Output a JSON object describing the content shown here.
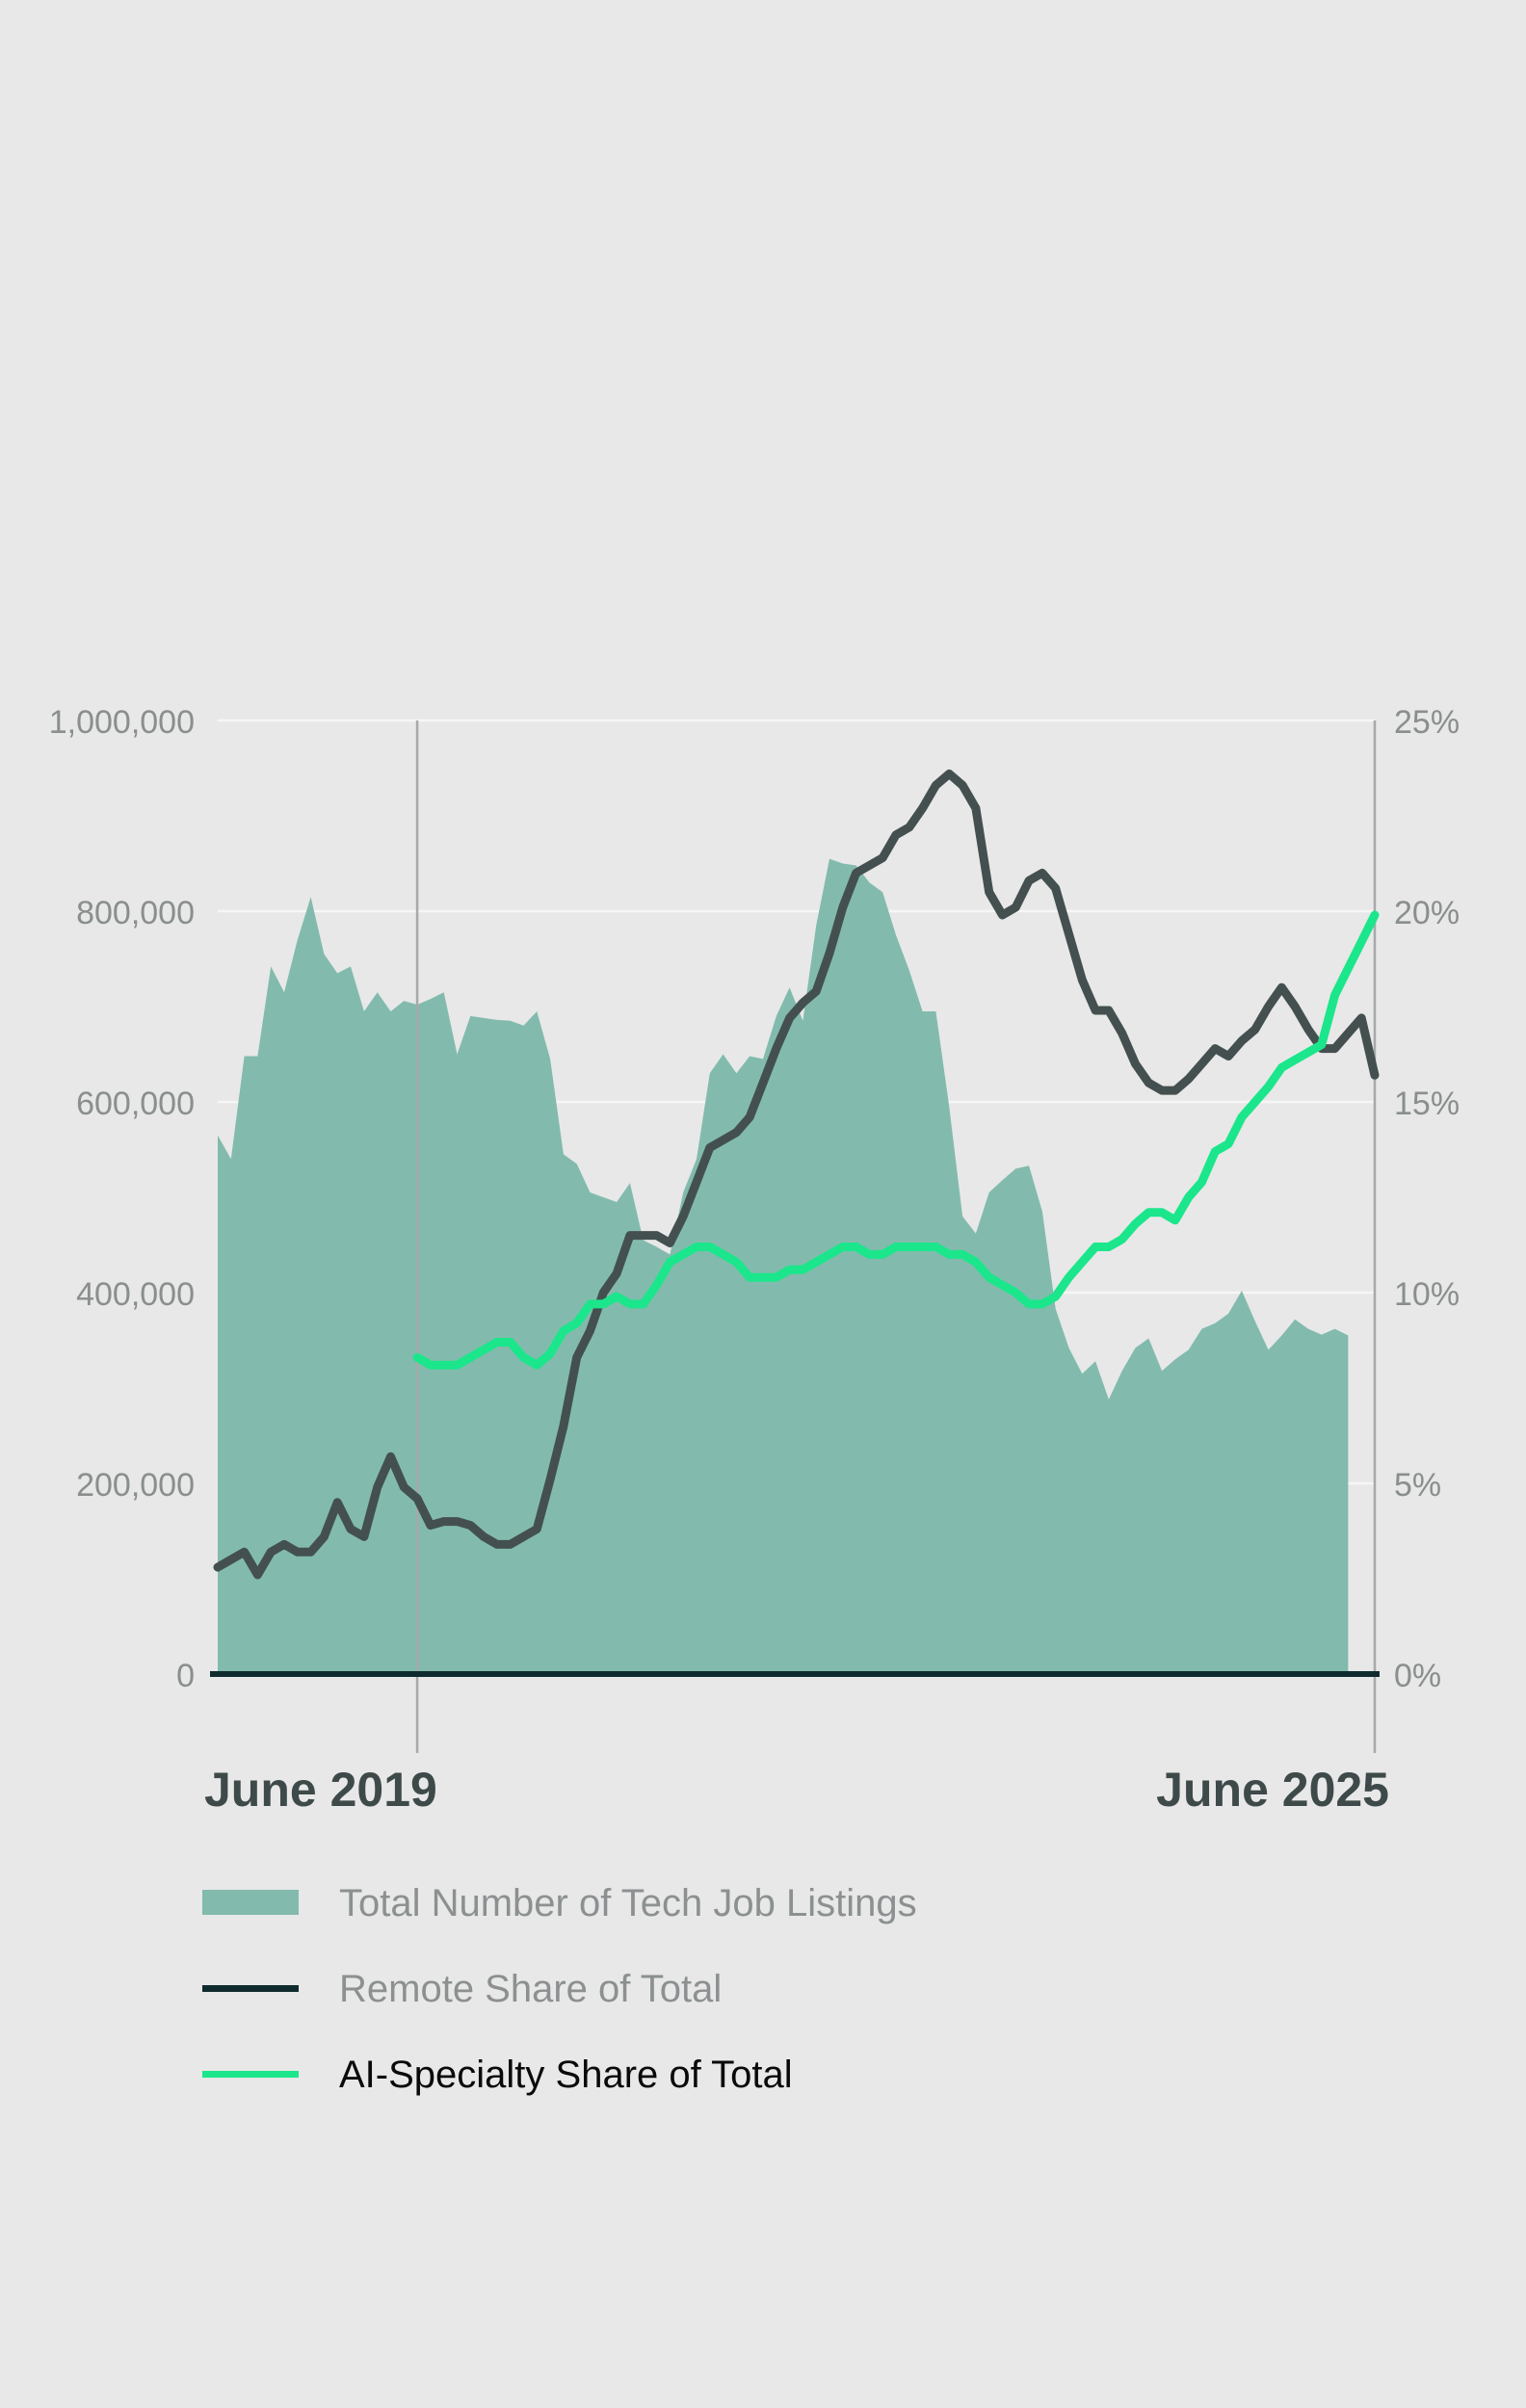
{
  "colors": {
    "background": "#e8e8e8",
    "area": "#82bbad",
    "remote_line": "#44504f",
    "ai_line": "#1be68b",
    "axis_text": "#8a8e8e",
    "date_label": "#3e4a49",
    "baseline": "#0f2b2d",
    "grid": "#f6f6f6",
    "marker": "#a6a9a9",
    "legend_dim": "#8c9090",
    "legend_strong": "#0a0a0a"
  },
  "chart_data": {
    "type": "area",
    "x_start_label": "June 2019",
    "x_end_label": "June 2025",
    "left_axis": {
      "ylim": [
        0,
        1000000
      ],
      "ticks": [
        0,
        200000,
        400000,
        600000,
        800000,
        1000000
      ],
      "tick_labels": [
        "0",
        "200,000",
        "400,000",
        "600,000",
        "800,000",
        "1,000,000"
      ]
    },
    "right_axis": {
      "ylim": [
        0,
        25
      ],
      "ticks": [
        0,
        5,
        10,
        15,
        20,
        25
      ],
      "tick_labels": [
        "0%",
        "5%",
        "10%",
        "15%",
        "20%",
        "25%"
      ]
    },
    "series": [
      {
        "name": "Total Number of Tech Job Listings",
        "kind": "area",
        "axis": "left",
        "values": [
          [
            0,
            565000
          ],
          [
            1,
            540000
          ],
          [
            2,
            648000
          ],
          [
            3,
            648000
          ],
          [
            4,
            742000
          ],
          [
            5,
            715000
          ],
          [
            6,
            770000
          ],
          [
            7,
            815000
          ],
          [
            8,
            755000
          ],
          [
            9,
            735000
          ],
          [
            10,
            742000
          ],
          [
            11,
            695000
          ],
          [
            12,
            715000
          ],
          [
            13,
            695000
          ],
          [
            14,
            706000
          ],
          [
            15,
            702000
          ],
          [
            16,
            708000
          ],
          [
            17,
            715000
          ],
          [
            18,
            650000
          ],
          [
            19,
            690000
          ],
          [
            20,
            688000
          ],
          [
            21,
            686000
          ],
          [
            22,
            685000
          ],
          [
            23,
            680000
          ],
          [
            24,
            695000
          ],
          [
            25,
            645000
          ],
          [
            26,
            545000
          ],
          [
            27,
            535000
          ],
          [
            28,
            505000
          ],
          [
            29,
            500000
          ],
          [
            30,
            495000
          ],
          [
            31,
            515000
          ],
          [
            32,
            455000
          ],
          [
            33,
            448000
          ],
          [
            34,
            440000
          ],
          [
            35,
            505000
          ],
          [
            36,
            540000
          ],
          [
            37,
            630000
          ],
          [
            38,
            650000
          ],
          [
            39,
            630000
          ],
          [
            40,
            648000
          ],
          [
            41,
            645000
          ],
          [
            42,
            690000
          ],
          [
            43,
            720000
          ],
          [
            44,
            685000
          ],
          [
            45,
            785000
          ],
          [
            46,
            855000
          ],
          [
            47,
            850000
          ],
          [
            48,
            848000
          ],
          [
            49,
            830000
          ],
          [
            50,
            820000
          ],
          [
            51,
            775000
          ],
          [
            52,
            738000
          ],
          [
            53,
            695000
          ],
          [
            54,
            695000
          ],
          [
            55,
            595000
          ],
          [
            56,
            480000
          ],
          [
            57,
            462000
          ],
          [
            58,
            505000
          ],
          [
            59,
            518000
          ],
          [
            60,
            530000
          ],
          [
            61,
            533000
          ],
          [
            62,
            485000
          ],
          [
            63,
            383000
          ],
          [
            64,
            342000
          ],
          [
            65,
            315000
          ],
          [
            66,
            328000
          ],
          [
            67,
            288000
          ],
          [
            68,
            318000
          ],
          [
            69,
            342000
          ],
          [
            70,
            352000
          ],
          [
            71,
            318000
          ],
          [
            72,
            330000
          ],
          [
            73,
            340000
          ],
          [
            74,
            362000
          ],
          [
            75,
            368000
          ],
          [
            76,
            378000
          ],
          [
            77,
            402000
          ],
          [
            78,
            370000
          ],
          [
            79,
            340000
          ],
          [
            80,
            355000
          ],
          [
            81,
            372000
          ],
          [
            82,
            362000
          ],
          [
            83,
            356000
          ],
          [
            84,
            362000
          ],
          [
            85,
            355000
          ]
        ]
      },
      {
        "name": "Remote Share of Total",
        "kind": "line",
        "axis": "right",
        "values": [
          [
            0,
            2.8
          ],
          [
            1,
            3.0
          ],
          [
            2,
            3.2
          ],
          [
            3,
            2.6
          ],
          [
            4,
            3.2
          ],
          [
            5,
            3.4
          ],
          [
            6,
            3.2
          ],
          [
            7,
            3.2
          ],
          [
            8,
            3.6
          ],
          [
            9,
            4.5
          ],
          [
            10,
            3.8
          ],
          [
            11,
            3.6
          ],
          [
            12,
            4.9
          ],
          [
            13,
            5.7
          ],
          [
            14,
            4.9
          ],
          [
            15,
            4.6
          ],
          [
            16,
            3.9
          ],
          [
            17,
            4.0
          ],
          [
            18,
            4.0
          ],
          [
            19,
            3.9
          ],
          [
            20,
            3.6
          ],
          [
            21,
            3.4
          ],
          [
            22,
            3.4
          ],
          [
            23,
            3.6
          ],
          [
            24,
            3.8
          ],
          [
            25,
            5.1
          ],
          [
            26,
            6.5
          ],
          [
            27,
            8.3
          ],
          [
            28,
            9.0
          ],
          [
            29,
            10.0
          ],
          [
            30,
            10.5
          ],
          [
            31,
            11.5
          ],
          [
            32,
            11.5
          ],
          [
            33,
            11.5
          ],
          [
            34,
            11.3
          ],
          [
            35,
            12.0
          ],
          [
            36,
            12.9
          ],
          [
            37,
            13.8
          ],
          [
            38,
            14.0
          ],
          [
            39,
            14.2
          ],
          [
            40,
            14.6
          ],
          [
            41,
            15.5
          ],
          [
            42,
            16.4
          ],
          [
            43,
            17.2
          ],
          [
            44,
            17.6
          ],
          [
            45,
            17.9
          ],
          [
            46,
            18.9
          ],
          [
            47,
            20.1
          ],
          [
            48,
            21.0
          ],
          [
            49,
            21.2
          ],
          [
            50,
            21.4
          ],
          [
            51,
            22.0
          ],
          [
            52,
            22.2
          ],
          [
            53,
            22.7
          ],
          [
            54,
            23.3
          ],
          [
            55,
            23.6
          ],
          [
            56,
            23.3
          ],
          [
            57,
            22.7
          ],
          [
            58,
            20.5
          ],
          [
            59,
            19.9
          ],
          [
            60,
            20.1
          ],
          [
            61,
            20.8
          ],
          [
            62,
            21.0
          ],
          [
            63,
            20.6
          ],
          [
            64,
            19.4
          ],
          [
            65,
            18.2
          ],
          [
            66,
            17.4
          ],
          [
            67,
            17.4
          ],
          [
            68,
            16.8
          ],
          [
            69,
            16.0
          ],
          [
            70,
            15.5
          ],
          [
            71,
            15.3
          ],
          [
            72,
            15.3
          ],
          [
            73,
            15.6
          ],
          [
            74,
            16.0
          ],
          [
            75,
            16.4
          ],
          [
            76,
            16.2
          ],
          [
            77,
            16.6
          ],
          [
            78,
            16.9
          ],
          [
            79,
            17.5
          ],
          [
            80,
            18.0
          ],
          [
            81,
            17.5
          ],
          [
            82,
            16.9
          ],
          [
            83,
            16.4
          ],
          [
            84,
            16.4
          ],
          [
            85,
            16.8
          ],
          [
            86,
            17.2
          ],
          [
            87,
            15.7
          ]
        ]
      },
      {
        "name": "AI-Specialty Share of Total",
        "kind": "line",
        "axis": "right",
        "values": [
          [
            15,
            8.3
          ],
          [
            16,
            8.1
          ],
          [
            17,
            8.1
          ],
          [
            18,
            8.1
          ],
          [
            19,
            8.3
          ],
          [
            20,
            8.5
          ],
          [
            21,
            8.7
          ],
          [
            22,
            8.7
          ],
          [
            23,
            8.3
          ],
          [
            24,
            8.1
          ],
          [
            25,
            8.4
          ],
          [
            26,
            9.0
          ],
          [
            27,
            9.2
          ],
          [
            28,
            9.7
          ],
          [
            29,
            9.7
          ],
          [
            30,
            9.9
          ],
          [
            31,
            9.7
          ],
          [
            32,
            9.7
          ],
          [
            33,
            10.2
          ],
          [
            34,
            10.8
          ],
          [
            35,
            11.0
          ],
          [
            36,
            11.2
          ],
          [
            37,
            11.2
          ],
          [
            38,
            11.0
          ],
          [
            39,
            10.8
          ],
          [
            40,
            10.4
          ],
          [
            41,
            10.4
          ],
          [
            42,
            10.4
          ],
          [
            43,
            10.6
          ],
          [
            44,
            10.6
          ],
          [
            45,
            10.8
          ],
          [
            46,
            11.0
          ],
          [
            47,
            11.2
          ],
          [
            48,
            11.2
          ],
          [
            49,
            11.0
          ],
          [
            50,
            11.0
          ],
          [
            51,
            11.2
          ],
          [
            52,
            11.2
          ],
          [
            53,
            11.2
          ],
          [
            54,
            11.2
          ],
          [
            55,
            11.0
          ],
          [
            56,
            11.0
          ],
          [
            57,
            10.8
          ],
          [
            58,
            10.4
          ],
          [
            59,
            10.2
          ],
          [
            60,
            10.0
          ],
          [
            61,
            9.7
          ],
          [
            62,
            9.7
          ],
          [
            63,
            9.9
          ],
          [
            64,
            10.4
          ],
          [
            65,
            10.8
          ],
          [
            66,
            11.2
          ],
          [
            67,
            11.2
          ],
          [
            68,
            11.4
          ],
          [
            69,
            11.8
          ],
          [
            70,
            12.1
          ],
          [
            71,
            12.1
          ],
          [
            72,
            11.9
          ],
          [
            73,
            12.5
          ],
          [
            74,
            12.9
          ],
          [
            75,
            13.7
          ],
          [
            76,
            13.9
          ],
          [
            77,
            14.6
          ],
          [
            78,
            15.0
          ],
          [
            79,
            15.4
          ],
          [
            80,
            15.9
          ],
          [
            81,
            16.1
          ],
          [
            82,
            16.3
          ],
          [
            83,
            16.5
          ],
          [
            84,
            17.8
          ],
          [
            85,
            18.5
          ],
          [
            86,
            19.2
          ],
          [
            87,
            19.9
          ]
        ]
      }
    ],
    "x_range": [
      0,
      87
    ],
    "marker_x": [
      15,
      87
    ],
    "grid": true
  }
}
